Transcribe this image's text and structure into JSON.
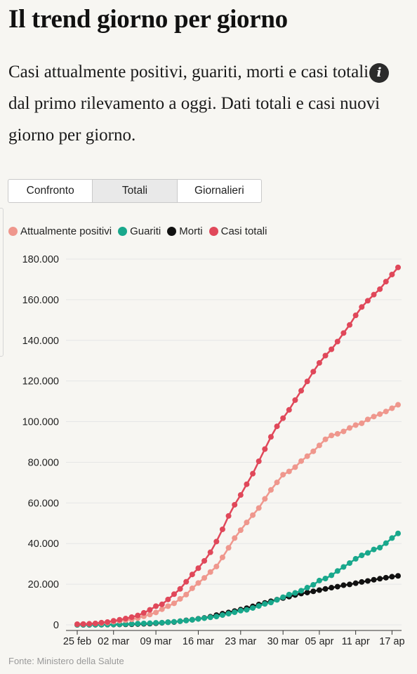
{
  "header": {
    "title": "Il trend giorno per giorno",
    "subtitle_part1": "Casi attualmente positivi, guariti, morti e casi totali",
    "info_icon_glyph": "i",
    "subtitle_part2": " dal primo rilevamento a oggi. Dati totali e casi nuovi giorno per giorno."
  },
  "tabs": [
    {
      "label": "Confronto",
      "active": false
    },
    {
      "label": "Totali",
      "active": true
    },
    {
      "label": "Giornalieri",
      "active": false
    }
  ],
  "source": "Fonte: Ministero della Salute",
  "chart_data": {
    "type": "line",
    "title": "",
    "xlabel": "",
    "ylabel": "",
    "ylim": [
      0,
      180000
    ],
    "y_ticks": [
      "0",
      "20.000",
      "40.000",
      "60.000",
      "80.000",
      "100.000",
      "120.000",
      "140.000",
      "160.000",
      "180.000"
    ],
    "x_tick_labels": [
      "25 feb",
      "02 mar",
      "09 mar",
      "16 mar",
      "23 mar",
      "30 mar",
      "05 apr",
      "11 apr",
      "17 ap"
    ],
    "x_tick_day_index": [
      0,
      6,
      13,
      20,
      27,
      34,
      40,
      46,
      52
    ],
    "n_points": 54,
    "grid": true,
    "legend_position": "top-left",
    "series": [
      {
        "name": "Attualmente positivi",
        "color": "#ef978d",
        "values": [
          300,
          400,
          500,
          700,
          900,
          1100,
          1600,
          2000,
          2300,
          2700,
          3300,
          4200,
          5100,
          6100,
          7700,
          9200,
          10600,
          12800,
          14900,
          18000,
          20600,
          23100,
          26000,
          28700,
          33200,
          37900,
          42700,
          46600,
          50400,
          54000,
          57500,
          62000,
          66400,
          70100,
          73900,
          75500,
          77600,
          80600,
          83000,
          85400,
          88300,
          91300,
          93200,
          94000,
          95200,
          96900,
          98300,
          99200,
          101100,
          102500,
          103700,
          105000,
          106600,
          108300
        ]
      },
      {
        "name": "Guariti",
        "color": "#19a88c",
        "values": [
          0,
          0,
          0,
          50,
          100,
          150,
          200,
          300,
          400,
          500,
          600,
          700,
          800,
          1000,
          1100,
          1300,
          1500,
          1800,
          2100,
          2500,
          2900,
          3300,
          3700,
          4100,
          4800,
          5500,
          6200,
          7000,
          7400,
          8300,
          9300,
          10300,
          11000,
          12300,
          13600,
          14900,
          15700,
          16800,
          18300,
          19700,
          21800,
          22800,
          24400,
          26500,
          28500,
          30400,
          32500,
          34200,
          35400,
          37100,
          38000,
          40200,
          42700,
          45000
        ]
      },
      {
        "name": "Morti",
        "color": "#111111",
        "values": [
          10,
          20,
          30,
          50,
          80,
          110,
          150,
          200,
          250,
          300,
          400,
          500,
          600,
          800,
          1000,
          1300,
          1400,
          1800,
          2200,
          2500,
          3000,
          3400,
          4000,
          4800,
          5500,
          6100,
          6800,
          7500,
          8200,
          9100,
          10000,
          10800,
          11600,
          12400,
          13200,
          13900,
          14700,
          15400,
          15900,
          16500,
          17100,
          17700,
          18300,
          18800,
          19500,
          19900,
          20500,
          21100,
          21600,
          22200,
          22700,
          23200,
          23700,
          24100
        ]
      },
      {
        "name": "Casi totali",
        "color": "#e0485a",
        "values": [
          300,
          400,
          500,
          700,
          1100,
          1400,
          2000,
          2500,
          3100,
          3800,
          4600,
          5900,
          7400,
          9200,
          10100,
          12500,
          15100,
          17700,
          21200,
          24800,
          27900,
          31500,
          35700,
          41000,
          47000,
          53600,
          59100,
          63900,
          69200,
          74400,
          80500,
          86500,
          92500,
          97700,
          101700,
          105800,
          110600,
          115200,
          119800,
          124600,
          128900,
          132500,
          135600,
          139400,
          143600,
          147600,
          152300,
          156400,
          159500,
          162500,
          165200,
          168900,
          172400,
          175900
        ]
      }
    ]
  }
}
